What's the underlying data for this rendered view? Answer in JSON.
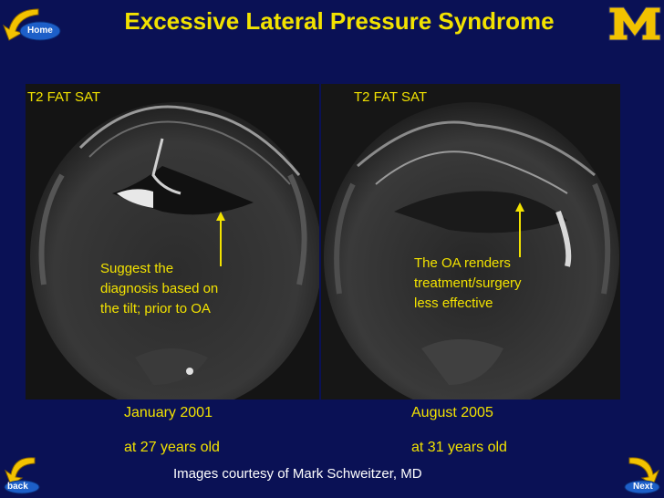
{
  "title": "Excessive Lateral Pressure Syndrome",
  "nav": {
    "home_label": "Home",
    "back_label": "back",
    "next_label": "Next"
  },
  "logo": {
    "letter": "M"
  },
  "left_panel": {
    "sequence": "T2 FAT SAT",
    "note_lines": [
      "Suggest the",
      "diagnosis based on",
      "the tilt; prior to OA"
    ],
    "date": "January 2001",
    "age": "at 27 years old"
  },
  "right_panel": {
    "sequence": "T2 FAT SAT",
    "note_lines": [
      "The OA renders",
      "treatment/surgery",
      "less effective"
    ],
    "date": "August 2005",
    "age": "at 31 years old"
  },
  "credit": "Images courtesy of Mark Schweitzer, MD",
  "colors": {
    "background": "#0a1155",
    "accent_yellow": "#f2e200",
    "nav_blue": "#1d5fc8"
  }
}
